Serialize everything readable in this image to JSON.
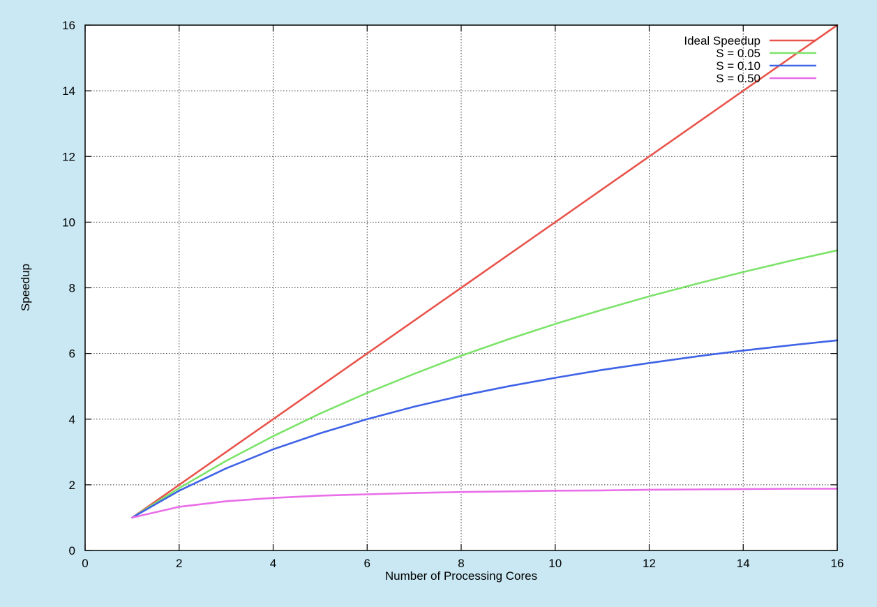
{
  "chart_data": {
    "type": "line",
    "title": "",
    "xlabel": "Number of Processing Cores",
    "ylabel": "Speedup",
    "xlim": [
      0,
      16
    ],
    "ylim": [
      0,
      16
    ],
    "x_ticks": [
      "0",
      "2",
      "4",
      "6",
      "8",
      "10",
      "12",
      "14",
      "16"
    ],
    "y_ticks": [
      "0",
      "2",
      "4",
      "6",
      "8",
      "10",
      "12",
      "14",
      "16"
    ],
    "grid": true,
    "legend_position": "top-right",
    "series": [
      {
        "name": "Ideal Speedup",
        "color": "#e8544c",
        "x": [
          1,
          2,
          3,
          4,
          5,
          6,
          7,
          8,
          9,
          10,
          11,
          12,
          13,
          14,
          15,
          16
        ],
        "y": [
          1,
          2,
          3,
          4,
          5,
          6,
          7,
          8,
          9,
          10,
          11,
          12,
          13,
          14,
          15,
          16
        ]
      },
      {
        "name": "S = 0.05",
        "color": "#7ce36a",
        "x": [
          1,
          2,
          3,
          4,
          5,
          6,
          7,
          8,
          9,
          10,
          11,
          12,
          13,
          14,
          15,
          16
        ],
        "y": [
          1,
          1.9,
          2.73,
          3.48,
          4.17,
          4.8,
          5.38,
          5.93,
          6.43,
          6.9,
          7.33,
          7.74,
          8.12,
          8.48,
          8.82,
          9.14
        ]
      },
      {
        "name": "S = 0.10",
        "color": "#3f63e6",
        "x": [
          1,
          2,
          3,
          4,
          5,
          6,
          7,
          8,
          9,
          10,
          11,
          12,
          13,
          14,
          15,
          16
        ],
        "y": [
          1,
          1.82,
          2.5,
          3.08,
          3.57,
          4.0,
          4.38,
          4.71,
          5.0,
          5.26,
          5.5,
          5.71,
          5.91,
          6.09,
          6.25,
          6.4
        ]
      },
      {
        "name": "S = 0.50",
        "color": "#e96ee8",
        "x": [
          1,
          2,
          3,
          4,
          5,
          6,
          7,
          8,
          9,
          10,
          11,
          12,
          13,
          14,
          15,
          16
        ],
        "y": [
          1,
          1.33,
          1.5,
          1.6,
          1.67,
          1.71,
          1.75,
          1.78,
          1.8,
          1.82,
          1.83,
          1.85,
          1.86,
          1.87,
          1.88,
          1.88
        ]
      }
    ]
  }
}
